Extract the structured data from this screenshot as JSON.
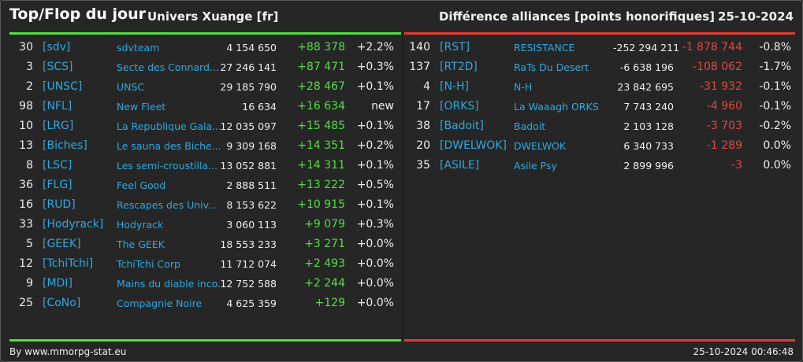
{
  "header": {
    "title": "Top/Flop du jour",
    "universe": "Univers Xuange [fr]",
    "diff_title": "Différence alliances [points honorifiques]",
    "date": "25-10-2024"
  },
  "colors": {
    "positive": "#55dd44",
    "negative": "#dd3c34",
    "link": "#2fa8e0",
    "background": "#262626"
  },
  "top": [
    {
      "rank": "30",
      "tag": "[sdv]",
      "name": "sdvteam",
      "points": "4 154 650",
      "diff": "+88 378",
      "pct": "+2.2%"
    },
    {
      "rank": "3",
      "tag": "[SCS]",
      "name": "Secte des Connard...",
      "points": "27 246 141",
      "diff": "+87 471",
      "pct": "+0.3%"
    },
    {
      "rank": "2",
      "tag": "[UNSC]",
      "name": "UNSC",
      "points": "29 185 790",
      "diff": "+28 467",
      "pct": "+0.1%"
    },
    {
      "rank": "98",
      "tag": "[NFL]",
      "name": "New Fleet",
      "points": "16 634",
      "diff": "+16 634",
      "pct": "new"
    },
    {
      "rank": "10",
      "tag": "[LRG]",
      "name": "La Republique Gala...",
      "points": "12 035 097",
      "diff": "+15 485",
      "pct": "+0.1%"
    },
    {
      "rank": "13",
      "tag": "[Biches]",
      "name": "Le sauna des Biche...",
      "points": "9 309 168",
      "diff": "+14 351",
      "pct": "+0.2%"
    },
    {
      "rank": "8",
      "tag": "[LSC]",
      "name": "Les semi-croustilla...",
      "points": "13 052 881",
      "diff": "+14 311",
      "pct": "+0.1%"
    },
    {
      "rank": "36",
      "tag": "[FLG]",
      "name": "Feel Good",
      "points": "2 888 511",
      "diff": "+13 222",
      "pct": "+0.5%"
    },
    {
      "rank": "16",
      "tag": "[RUD]",
      "name": "Rescapes des Univ...",
      "points": "8 153 622",
      "diff": "+10 915",
      "pct": "+0.1%"
    },
    {
      "rank": "33",
      "tag": "[Hodyrack]",
      "name": "Hodyrack",
      "points": "3 060 113",
      "diff": "+9 079",
      "pct": "+0.3%"
    },
    {
      "rank": "5",
      "tag": "[GEEK]",
      "name": "The GEEK",
      "points": "18 553 233",
      "diff": "+3 271",
      "pct": "+0.0%"
    },
    {
      "rank": "12",
      "tag": "[TchiTchi]",
      "name": "TchiTchi Corp",
      "points": "11 712 074",
      "diff": "+2 493",
      "pct": "+0.0%"
    },
    {
      "rank": "9",
      "tag": "[MDI]",
      "name": "Mains du diable inco...",
      "points": "12 752 588",
      "diff": "+2 244",
      "pct": "+0.0%"
    },
    {
      "rank": "25",
      "tag": "[CoNo]",
      "name": "Compagnie Noire",
      "points": "4 625 359",
      "diff": "+129",
      "pct": "+0.0%"
    }
  ],
  "flop": [
    {
      "rank": "140",
      "tag": "[RST]",
      "name": "RESISTANCE",
      "points": "-252 294 211",
      "diff": "-1 878 744",
      "pct": "-0.8%"
    },
    {
      "rank": "137",
      "tag": "[RT2D]",
      "name": "RaTs Du Desert",
      "points": "-6 638 196",
      "diff": "-108 062",
      "pct": "-1.7%"
    },
    {
      "rank": "4",
      "tag": "[N-H]",
      "name": "N-H",
      "points": "23 842 695",
      "diff": "-31 932",
      "pct": "-0.1%"
    },
    {
      "rank": "17",
      "tag": "[ORKS]",
      "name": "La Waaagh ORKS",
      "points": "7 743 240",
      "diff": "-4 960",
      "pct": "-0.1%"
    },
    {
      "rank": "38",
      "tag": "[Badoit]",
      "name": "Badoit",
      "points": "2 103 128",
      "diff": "-3 703",
      "pct": "-0.2%"
    },
    {
      "rank": "20",
      "tag": "[DWELWOK]",
      "name": "DWELWOK",
      "points": "6 340 733",
      "diff": "-1 289",
      "pct": "0.0%"
    },
    {
      "rank": "35",
      "tag": "[ASILE]",
      "name": "Asile Psy",
      "points": "2 899 996",
      "diff": "-3",
      "pct": "0.0%"
    }
  ],
  "footer": {
    "credit": "By www.mmorpg-stat.eu",
    "timestamp": "25-10-2024 00:46:48"
  }
}
